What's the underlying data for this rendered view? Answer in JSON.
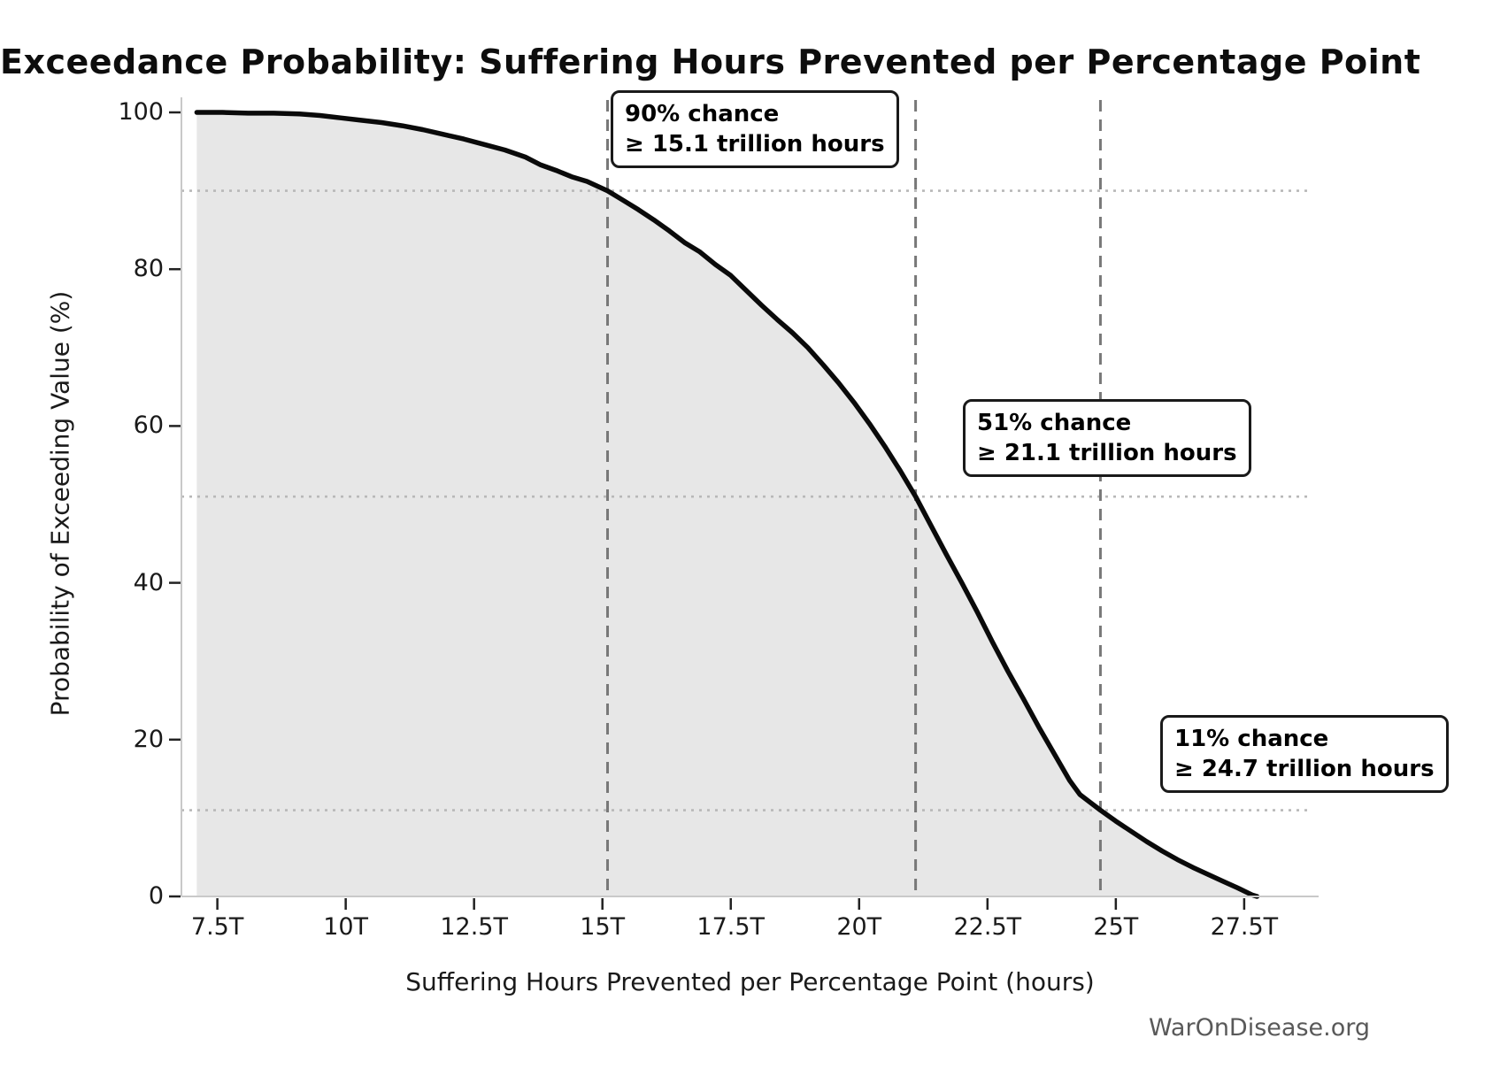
{
  "figure": {
    "title": "Exceedance Probability: Suffering Hours Prevented per Percentage Point",
    "watermark": "WarOnDisease.org"
  },
  "chart_data": {
    "type": "area",
    "title": "Exceedance Probability: Suffering Hours Prevented per Percentage Point",
    "xlabel": "Suffering Hours Prevented per Percentage Point (hours)",
    "ylabel": "Probability of Exceeding Value (%)",
    "xlim": [
      6.8,
      28.95
    ],
    "ylim": [
      0,
      100
    ],
    "grid": "off",
    "legend": "none",
    "x_unit": "trillion hours",
    "x_ticks": [
      {
        "value": 7.5,
        "label": "7.5T"
      },
      {
        "value": 10,
        "label": "10T"
      },
      {
        "value": 12.5,
        "label": "12.5T"
      },
      {
        "value": 15,
        "label": "15T"
      },
      {
        "value": 17.5,
        "label": "17.5T"
      },
      {
        "value": 20,
        "label": "20T"
      },
      {
        "value": 22.5,
        "label": "22.5T"
      },
      {
        "value": 25,
        "label": "25T"
      },
      {
        "value": 27.5,
        "label": "27.5T"
      }
    ],
    "y_ticks": [
      {
        "value": 0,
        "label": "0"
      },
      {
        "value": 20,
        "label": "20"
      },
      {
        "value": 40,
        "label": "40"
      },
      {
        "value": 60,
        "label": "60"
      },
      {
        "value": 80,
        "label": "80"
      },
      {
        "value": 100,
        "label": "100"
      }
    ],
    "annotations": [
      {
        "chance_pct": 90,
        "threshold_trillions": 15.1,
        "line1": "90% chance",
        "line2": "≥ 15.1 trillion hours"
      },
      {
        "chance_pct": 51,
        "threshold_trillions": 21.1,
        "line1": "51% chance",
        "line2": "≥ 21.1 trillion hours"
      },
      {
        "chance_pct": 11,
        "threshold_trillions": 24.7,
        "line1": "11% chance",
        "line2": "≥ 24.7 trillion hours"
      }
    ],
    "curve_points": [
      [
        7.1,
        100.0
      ],
      [
        7.6,
        100.0
      ],
      [
        8.1,
        99.9
      ],
      [
        8.6,
        99.9
      ],
      [
        9.1,
        99.8
      ],
      [
        9.5,
        99.6
      ],
      [
        9.9,
        99.3
      ],
      [
        10.3,
        99.0
      ],
      [
        10.7,
        98.7
      ],
      [
        11.1,
        98.3
      ],
      [
        11.5,
        97.8
      ],
      [
        11.9,
        97.2
      ],
      [
        12.3,
        96.6
      ],
      [
        12.7,
        95.9
      ],
      [
        13.1,
        95.2
      ],
      [
        13.5,
        94.3
      ],
      [
        13.8,
        93.3
      ],
      [
        14.1,
        92.6
      ],
      [
        14.4,
        91.8
      ],
      [
        14.7,
        91.2
      ],
      [
        15.1,
        90.0
      ],
      [
        15.4,
        88.8
      ],
      [
        15.7,
        87.6
      ],
      [
        16.0,
        86.3
      ],
      [
        16.3,
        84.9
      ],
      [
        16.6,
        83.4
      ],
      [
        16.9,
        82.2
      ],
      [
        17.2,
        80.6
      ],
      [
        17.5,
        79.2
      ],
      [
        17.8,
        77.3
      ],
      [
        18.1,
        75.4
      ],
      [
        18.4,
        73.6
      ],
      [
        18.7,
        71.9
      ],
      [
        19.0,
        70.0
      ],
      [
        19.3,
        67.8
      ],
      [
        19.6,
        65.5
      ],
      [
        19.9,
        63.0
      ],
      [
        20.2,
        60.3
      ],
      [
        20.5,
        57.4
      ],
      [
        20.8,
        54.3
      ],
      [
        21.1,
        51.0
      ],
      [
        21.4,
        47.3
      ],
      [
        21.7,
        43.6
      ],
      [
        22.0,
        40.0
      ],
      [
        22.3,
        36.3
      ],
      [
        22.6,
        32.4
      ],
      [
        22.9,
        28.7
      ],
      [
        23.2,
        25.2
      ],
      [
        23.5,
        21.6
      ],
      [
        23.8,
        18.2
      ],
      [
        24.1,
        14.8
      ],
      [
        24.3,
        13.0
      ],
      [
        24.5,
        12.0
      ],
      [
        24.7,
        11.0
      ],
      [
        25.0,
        9.6
      ],
      [
        25.3,
        8.3
      ],
      [
        25.6,
        7.0
      ],
      [
        25.9,
        5.8
      ],
      [
        26.2,
        4.7
      ],
      [
        26.5,
        3.7
      ],
      [
        26.8,
        2.8
      ],
      [
        27.1,
        1.9
      ],
      [
        27.4,
        1.0
      ],
      [
        27.65,
        0.2
      ],
      [
        27.75,
        0.0
      ]
    ],
    "colors": {
      "curve": "#0a0a0a",
      "fill": "#e7e7e7",
      "dashed_line": "#787878",
      "dotted_line": "#b8b8b8",
      "spine": "#c9c9c9",
      "tick_mark": "#222222"
    }
  }
}
